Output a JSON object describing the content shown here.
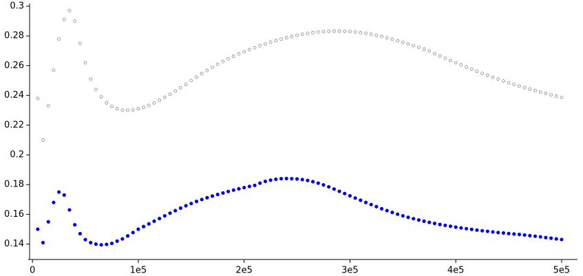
{
  "chart_data": {
    "type": "scatter",
    "x": [
      5000,
      10000,
      15000,
      20000,
      25000,
      30000,
      35000,
      40000,
      45000,
      50000,
      55000,
      60000,
      65000,
      70000,
      75000,
      80000,
      85000,
      90000,
      95000,
      100000,
      105000,
      110000,
      115000,
      120000,
      125000,
      130000,
      135000,
      140000,
      145000,
      150000,
      155000,
      160000,
      165000,
      170000,
      175000,
      180000,
      185000,
      190000,
      195000,
      200000,
      205000,
      210000,
      215000,
      220000,
      225000,
      230000,
      235000,
      240000,
      245000,
      250000,
      255000,
      260000,
      265000,
      270000,
      275000,
      280000,
      285000,
      290000,
      295000,
      300000,
      305000,
      310000,
      315000,
      320000,
      325000,
      330000,
      335000,
      340000,
      345000,
      350000,
      355000,
      360000,
      365000,
      370000,
      375000,
      380000,
      385000,
      390000,
      395000,
      400000,
      405000,
      410000,
      415000,
      420000,
      425000,
      430000,
      435000,
      440000,
      445000,
      450000,
      455000,
      460000,
      465000,
      470000,
      475000,
      480000,
      485000,
      490000,
      495000,
      500000
    ],
    "series": [
      {
        "color": "#888888",
        "marker": "open",
        "values": [
          0.238,
          0.21,
          0.233,
          0.257,
          0.278,
          0.291,
          0.297,
          0.29,
          0.275,
          0.262,
          0.251,
          0.244,
          0.239,
          0.235,
          0.2325,
          0.231,
          0.2302,
          0.23,
          0.2302,
          0.231,
          0.232,
          0.2333,
          0.2349,
          0.2367,
          0.2387,
          0.2408,
          0.243,
          0.2452,
          0.2474,
          0.25,
          0.2523,
          0.2546,
          0.2568,
          0.2589,
          0.2609,
          0.2628,
          0.2646,
          0.2663,
          0.2679,
          0.2694,
          0.2708,
          0.2721,
          0.2734,
          0.2746,
          0.2758,
          0.2769,
          0.2779,
          0.2788,
          0.2796,
          0.2804,
          0.2811,
          0.2817,
          0.2822,
          0.2826,
          0.2829,
          0.2831,
          0.2832,
          0.2832,
          0.2831,
          0.2829,
          0.2826,
          0.2822,
          0.2817,
          0.2811,
          0.2804,
          0.2796,
          0.2787,
          0.2778,
          0.2768,
          0.2757,
          0.2746,
          0.2735,
          0.2723,
          0.2711,
          0.2699,
          0.268,
          0.2665,
          0.265,
          0.2635,
          0.262,
          0.2605,
          0.259,
          0.2576,
          0.2562,
          0.2548,
          0.2535,
          0.2522,
          0.2509,
          0.2497,
          0.2485,
          0.2474,
          0.2463,
          0.2452,
          0.2442,
          0.2432,
          0.2422,
          0.2413,
          0.2404,
          0.2395,
          0.2386
        ]
      },
      {
        "color": "#0000ee",
        "marker": "filled",
        "values": [
          0.15,
          0.141,
          0.155,
          0.168,
          0.175,
          0.173,
          0.163,
          0.153,
          0.147,
          0.143,
          0.141,
          0.14,
          0.1395,
          0.1398,
          0.1405,
          0.142,
          0.1435,
          0.1455,
          0.1478,
          0.15,
          0.1518,
          0.1536,
          0.1554,
          0.1572,
          0.159,
          0.1608,
          0.1625,
          0.1642,
          0.1658,
          0.1673,
          0.1687,
          0.17,
          0.1712,
          0.1723,
          0.1734,
          0.1744,
          0.1754,
          0.1763,
          0.1772,
          0.178,
          0.1788,
          0.1795,
          0.181,
          0.1822,
          0.183,
          0.1836,
          0.184,
          0.1841,
          0.184,
          0.1838,
          0.1834,
          0.1828,
          0.182,
          0.181,
          0.1798,
          0.1785,
          0.177,
          0.1755,
          0.174,
          0.1725,
          0.171,
          0.1695,
          0.168,
          0.1666,
          0.1652,
          0.1638,
          0.1625,
          0.1613,
          0.1601,
          0.159,
          0.158,
          0.1571,
          0.1562,
          0.1554,
          0.1546,
          0.1539,
          0.1532,
          0.1526,
          0.152,
          0.1514,
          0.1509,
          0.1504,
          0.1499,
          0.1494,
          0.149,
          0.1486,
          0.1482,
          0.1478,
          0.1475,
          0.1471,
          0.1468,
          0.1465,
          0.1461,
          0.1457,
          0.1453,
          0.1449,
          0.1444,
          0.144,
          0.1435,
          0.1431
        ]
      }
    ],
    "xlim": [
      -4000,
      515000
    ],
    "xticks": [
      0,
      {
        "value": 100000,
        "label": "1e5"
      },
      {
        "value": 200000,
        "label": "2e5"
      },
      {
        "value": 300000,
        "label": "3e5"
      },
      {
        "value": 400000,
        "label": "4e5"
      },
      {
        "value": 500000,
        "label": "5e5"
      }
    ],
    "ylim": [
      0.1315,
      0.3
    ],
    "yticks": [
      0.14,
      0.16,
      0.18,
      0.2,
      0.22,
      0.24,
      0.26,
      0.28,
      0.3
    ]
  }
}
